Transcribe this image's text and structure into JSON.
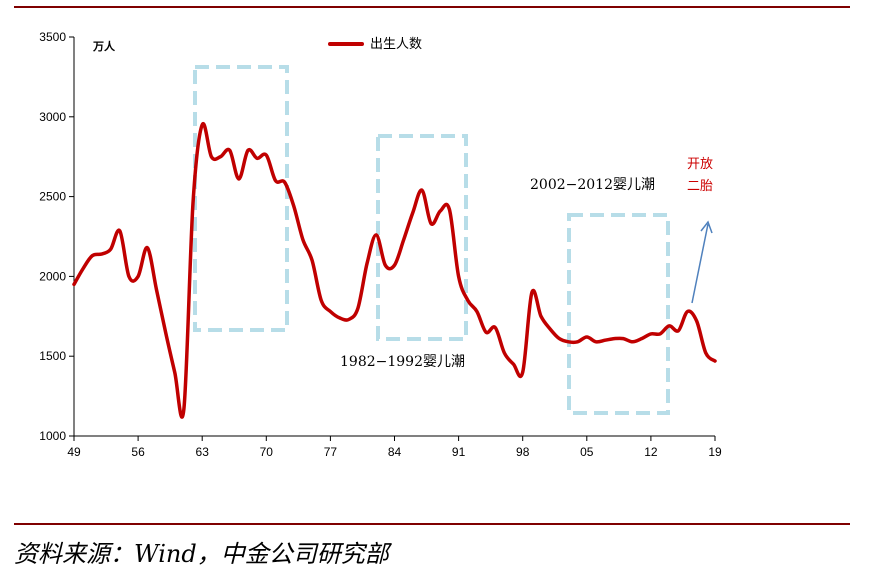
{
  "chart_data": {
    "type": "line",
    "unit_label": "万人",
    "ylim": [
      1000,
      3500
    ],
    "y_ticks": [
      1000,
      1500,
      2000,
      2500,
      3000,
      3500
    ],
    "x_tick_labels": [
      "49",
      "56",
      "63",
      "70",
      "77",
      "84",
      "91",
      "98",
      "05",
      "12",
      "19"
    ],
    "x_tick_years": [
      1949,
      1956,
      1963,
      1970,
      1977,
      1984,
      1991,
      1998,
      2005,
      2012,
      2019
    ],
    "xlim": [
      1949,
      2019
    ],
    "grid": false,
    "legend_position": "top-center",
    "series": [
      {
        "name": "出生人数",
        "color": "#c00000",
        "x": [
          1949,
          1950,
          1951,
          1952,
          1953,
          1954,
          1955,
          1956,
          1957,
          1958,
          1959,
          1960,
          1961,
          1962,
          1963,
          1964,
          1965,
          1966,
          1967,
          1968,
          1969,
          1970,
          1971,
          1972,
          1973,
          1974,
          1975,
          1976,
          1977,
          1978,
          1979,
          1980,
          1981,
          1982,
          1983,
          1984,
          1985,
          1986,
          1987,
          1988,
          1989,
          1990,
          1991,
          1992,
          1993,
          1994,
          1995,
          1996,
          1997,
          1998,
          1999,
          2000,
          2001,
          2002,
          2003,
          2004,
          2005,
          2006,
          2007,
          2008,
          2009,
          2010,
          2011,
          2012,
          2013,
          2014,
          2015,
          2016,
          2017,
          2018,
          2019
        ],
        "values": [
          1950,
          2050,
          2130,
          2140,
          2170,
          2285,
          2000,
          2000,
          2180,
          1920,
          1650,
          1400,
          1170,
          2460,
          2950,
          2750,
          2750,
          2790,
          2610,
          2790,
          2740,
          2760,
          2600,
          2590,
          2440,
          2230,
          2100,
          1850,
          1780,
          1740,
          1730,
          1800,
          2080,
          2260,
          2070,
          2070,
          2230,
          2400,
          2540,
          2330,
          2410,
          2420,
          2000,
          1850,
          1780,
          1650,
          1680,
          1520,
          1450,
          1400,
          1900,
          1750,
          1670,
          1610,
          1590,
          1590,
          1620,
          1590,
          1600,
          1610,
          1610,
          1590,
          1610,
          1640,
          1640,
          1690,
          1660,
          1780,
          1720,
          1520,
          1470
        ]
      }
    ],
    "annotations": {
      "boom_1962_1972": "",
      "boom_1982_1992": "1982−1992婴儿潮",
      "boom_2002_2012": "2002−2012婴儿潮",
      "policy_line1": "开放",
      "policy_line2": "二胎"
    }
  },
  "source": "资料来源：Wind，中金公司研究部",
  "colors": {
    "line": "#c00000",
    "box": "#b7dde8",
    "rule": "#7f0000",
    "arrow": "#4f81bd"
  }
}
